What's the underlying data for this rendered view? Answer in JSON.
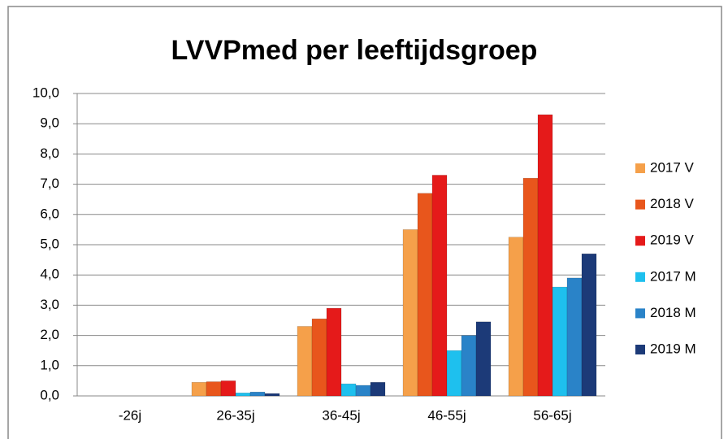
{
  "chart_data": {
    "type": "bar",
    "title": "LVVPmed per leeftijdsgroep",
    "categories": [
      "-26j",
      "26-35j",
      "36-45j",
      "46-55j",
      "56-65j"
    ],
    "series": [
      {
        "name": "2017 V",
        "color": "#f5a04a",
        "values": [
          0,
          0.45,
          2.3,
          5.5,
          5.25
        ]
      },
      {
        "name": "2018 V",
        "color": "#e8561c",
        "values": [
          0,
          0.47,
          2.55,
          6.7,
          7.2
        ]
      },
      {
        "name": "2019 V",
        "color": "#e51a1a",
        "values": [
          0,
          0.5,
          2.9,
          7.3,
          9.3
        ]
      },
      {
        "name": "2017 M",
        "color": "#1ec0ee",
        "values": [
          0,
          0.1,
          0.4,
          1.5,
          3.6
        ]
      },
      {
        "name": "2018 M",
        "color": "#2a83c8",
        "values": [
          0,
          0.13,
          0.35,
          2.0,
          3.9
        ]
      },
      {
        "name": "2019 M",
        "color": "#1c3a78",
        "values": [
          0,
          0.08,
          0.45,
          2.45,
          4.7
        ]
      }
    ],
    "ylim": [
      0,
      10
    ],
    "yticks": [
      {
        "value": 0,
        "label": "0,0"
      },
      {
        "value": 1,
        "label": "1,0"
      },
      {
        "value": 2,
        "label": "2,0"
      },
      {
        "value": 3,
        "label": "3,0"
      },
      {
        "value": 4,
        "label": "4,0"
      },
      {
        "value": 5,
        "label": "5,0"
      },
      {
        "value": 6,
        "label": "6,0"
      },
      {
        "value": 7,
        "label": "7,0"
      },
      {
        "value": 8,
        "label": "8,0"
      },
      {
        "value": 9,
        "label": "9,0"
      },
      {
        "value": 10,
        "label": "10,0"
      }
    ],
    "grid": true,
    "legend": "right"
  }
}
